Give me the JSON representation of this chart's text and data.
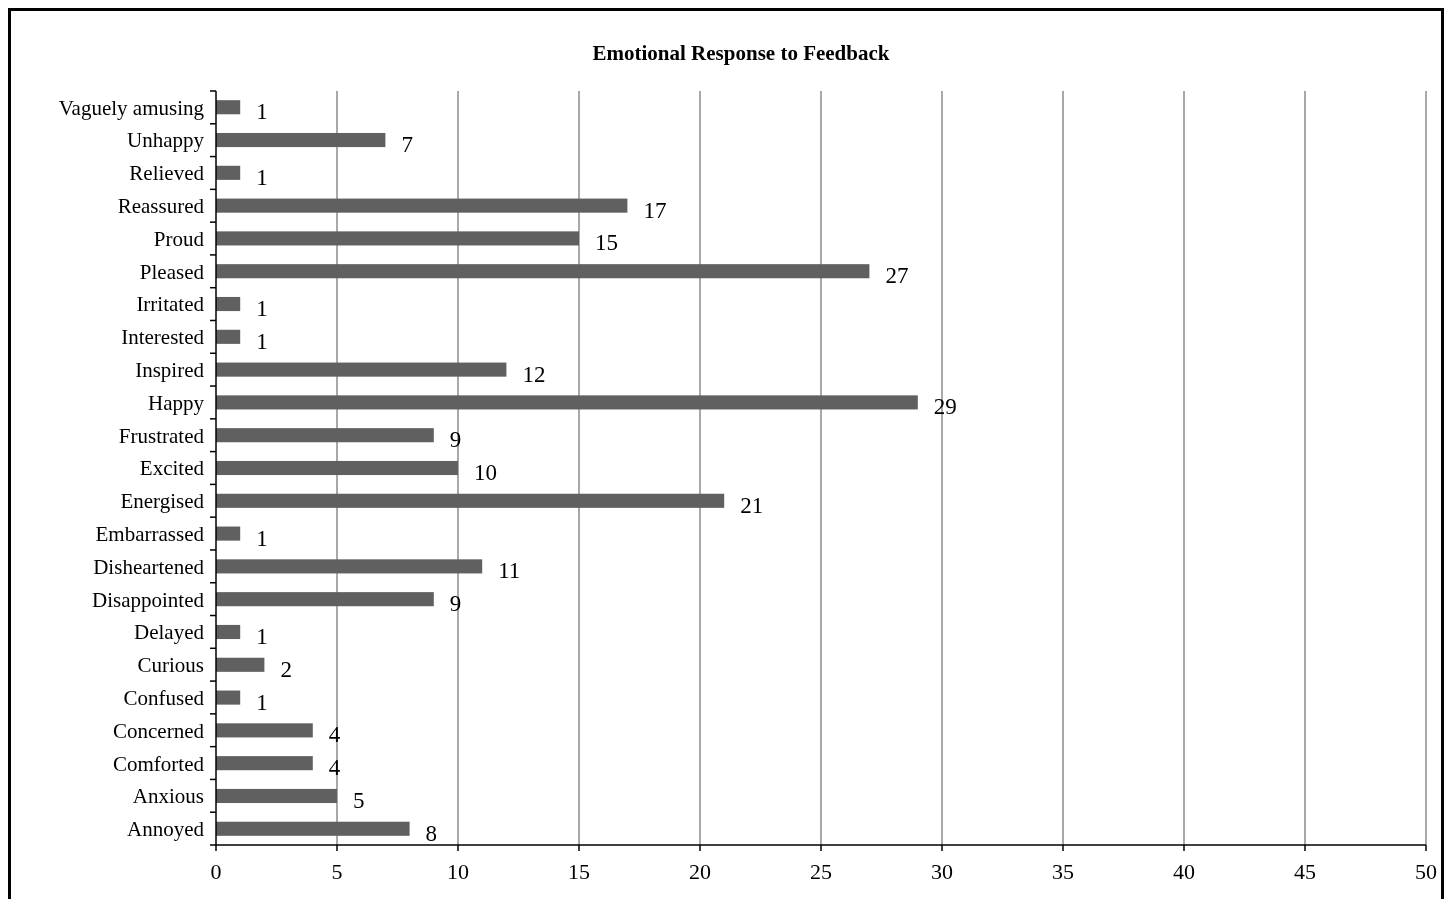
{
  "chart_data": {
    "type": "bar",
    "orientation": "horizontal",
    "title": "Emotional Response to Feedback",
    "categories": [
      "Vaguely amusing",
      "Unhappy",
      "Relieved",
      "Reassured",
      "Proud",
      "Pleased",
      "Irritated",
      "Interested",
      "Inspired",
      "Happy",
      "Frustrated",
      "Excited",
      "Energised",
      "Embarrassed",
      "Disheartened",
      "Disappointed",
      "Delayed",
      "Curious",
      "Confused",
      "Concerned",
      "Comforted",
      "Anxious",
      "Annoyed"
    ],
    "values": [
      1,
      7,
      1,
      17,
      15,
      27,
      1,
      1,
      12,
      29,
      9,
      10,
      21,
      1,
      11,
      9,
      1,
      2,
      1,
      4,
      4,
      5,
      8
    ],
    "color": "#606060",
    "xlim": [
      0,
      50
    ],
    "xticks": [
      0,
      5,
      10,
      15,
      20,
      25,
      30,
      35,
      40,
      45,
      50
    ],
    "grid": "x",
    "data_labels": true
  }
}
